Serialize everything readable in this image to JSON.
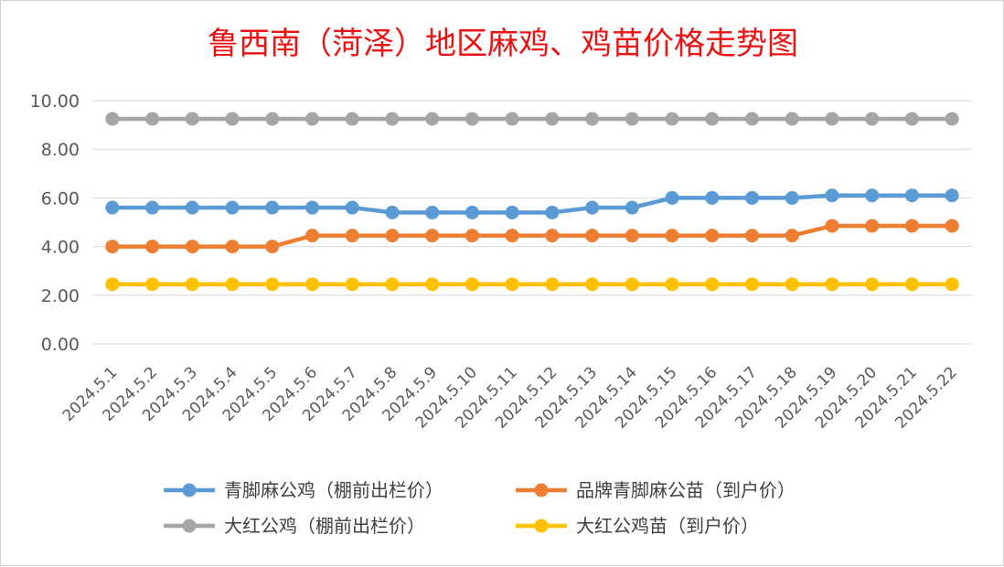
{
  "chart_data": {
    "type": "line",
    "title": "鲁西南（菏泽）地区麻鸡、鸡苗价格走势图",
    "ylim": [
      0,
      10
    ],
    "y_ticks": [
      "0.00",
      "2.00",
      "4.00",
      "6.00",
      "8.00",
      "10.00"
    ],
    "grid": true,
    "legend_position": "bottom",
    "categories": [
      "2024.5.1",
      "2024.5.2",
      "2024.5.3",
      "2024.5.4",
      "2024.5.5",
      "2024.5.6",
      "2024.5.7",
      "2024.5.8",
      "2024.5.9",
      "2024.5.10",
      "2024.5.11",
      "2024.5.12",
      "2024.5.13",
      "2024.5.14",
      "2024.5.15",
      "2024.5.16",
      "2024.5.17",
      "2024.5.18",
      "2024.5.19",
      "2024.5.20",
      "2024.5.21",
      "2024.5.22"
    ],
    "series": [
      {
        "name": "青脚麻公鸡（棚前出栏价）",
        "color": "#5b9bd5",
        "values": [
          5.6,
          5.6,
          5.6,
          5.6,
          5.6,
          5.6,
          5.6,
          5.4,
          5.4,
          5.4,
          5.4,
          5.4,
          5.6,
          5.6,
          6.0,
          6.0,
          6.0,
          6.0,
          6.1,
          6.1,
          6.1,
          6.1
        ]
      },
      {
        "name": "品牌青脚麻公苗（到户价）",
        "color": "#ed7d31",
        "values": [
          4.0,
          4.0,
          4.0,
          4.0,
          4.0,
          4.45,
          4.45,
          4.45,
          4.45,
          4.45,
          4.45,
          4.45,
          4.45,
          4.45,
          4.45,
          4.45,
          4.45,
          4.45,
          4.85,
          4.85,
          4.85,
          4.85
        ]
      },
      {
        "name": "大红公鸡（棚前出栏价）",
        "color": "#a5a5a5",
        "values": [
          9.25,
          9.25,
          9.25,
          9.25,
          9.25,
          9.25,
          9.25,
          9.25,
          9.25,
          9.25,
          9.25,
          9.25,
          9.25,
          9.25,
          9.25,
          9.25,
          9.25,
          9.25,
          9.25,
          9.25,
          9.25,
          9.25
        ]
      },
      {
        "name": "大红公鸡苗（到户价）",
        "color": "#ffc000",
        "values": [
          2.45,
          2.45,
          2.45,
          2.45,
          2.45,
          2.45,
          2.45,
          2.45,
          2.45,
          2.45,
          2.45,
          2.45,
          2.45,
          2.45,
          2.45,
          2.45,
          2.45,
          2.45,
          2.45,
          2.45,
          2.45,
          2.45
        ]
      }
    ]
  }
}
